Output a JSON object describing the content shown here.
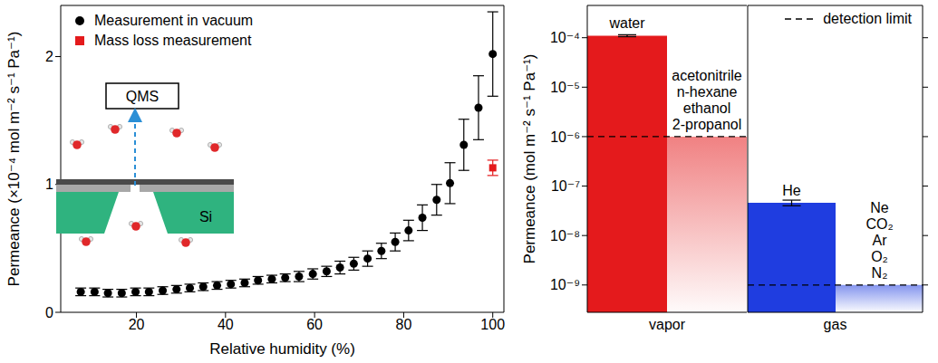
{
  "chart_data": [
    {
      "type": "scatter",
      "x_label": "Relative humidity (%)",
      "y_label": "Permeance (×10⁻⁴ mol m⁻² s⁻¹ Pa⁻¹)",
      "xlim": [
        3,
        102.5
      ],
      "ylim": [
        0,
        2.4
      ],
      "xticks": [
        20,
        40,
        60,
        80,
        100
      ],
      "yticks": [
        0,
        1,
        2
      ],
      "legend": "upper left",
      "annotations": [
        "QMS",
        "Si"
      ],
      "series": [
        {
          "name": "Measurement in vacuum",
          "color": "#000000",
          "marker": "circle",
          "x": [
            7.5,
            10.6,
            13.6,
            16.7,
            19.8,
            22.8,
            25.9,
            29.0,
            32.0,
            35.0,
            38.1,
            41.2,
            44.3,
            47.3,
            50.4,
            53.4,
            56.5,
            59.6,
            62.7,
            65.7,
            68.8,
            71.9,
            75.0,
            78.1,
            81.1,
            84.2,
            87.4,
            90.4,
            93.5,
            96.8,
            100
          ],
          "values": [
            0.16,
            0.16,
            0.15,
            0.15,
            0.16,
            0.16,
            0.17,
            0.18,
            0.19,
            0.2,
            0.21,
            0.22,
            0.23,
            0.25,
            0.26,
            0.27,
            0.28,
            0.3,
            0.32,
            0.35,
            0.38,
            0.42,
            0.48,
            0.55,
            0.64,
            0.74,
            0.88,
            1.01,
            1.31,
            1.6,
            2.02
          ],
          "errors": [
            0.03,
            0.03,
            0.03,
            0.03,
            0.03,
            0.03,
            0.03,
            0.03,
            0.03,
            0.03,
            0.03,
            0.03,
            0.03,
            0.03,
            0.03,
            0.03,
            0.04,
            0.04,
            0.04,
            0.05,
            0.05,
            0.06,
            0.06,
            0.07,
            0.08,
            0.1,
            0.12,
            0.16,
            0.2,
            0.25,
            0.33
          ]
        },
        {
          "name": "Mass loss measurement",
          "color": "#e41a1c",
          "marker": "square",
          "x": [
            100
          ],
          "values": [
            1.13
          ],
          "errors": [
            0.06
          ]
        }
      ]
    },
    {
      "type": "bar",
      "log": "y",
      "categories": [
        "vapor"
      ],
      "y_label": "Permeance (mol m⁻² s⁻¹ Pa⁻¹)",
      "ylim": [
        2.8e-10,
        0.00045
      ],
      "yticks": [
        {
          "value": 1e-09,
          "label": "10⁻⁹"
        },
        {
          "value": 1e-08,
          "label": "10⁻⁸"
        },
        {
          "value": 1e-07,
          "label": "10⁻⁷"
        },
        {
          "value": 1e-06,
          "label": "10⁻⁶"
        },
        {
          "value": 1e-05,
          "label": "10⁻⁵"
        },
        {
          "value": 0.0001,
          "label": "10⁻⁴"
        }
      ],
      "reference_lines": [
        {
          "value": 1e-06,
          "line_style": "dashed"
        }
      ],
      "series": [
        {
          "name": "water",
          "color": "#e41a1c",
          "values": [
            0.00011
          ],
          "errors": [
            5e-06
          ]
        },
        {
          "name": "acetonitrile\nn-hexane\nethanol\n2-propanol",
          "color": "#e41a1c",
          "type": "fade",
          "values": [
            1e-06
          ]
        }
      ]
    },
    {
      "type": "bar",
      "log": "y",
      "categories": [
        "gas"
      ],
      "tick_labels": "x",
      "ylim": [
        2.8e-10,
        0.00045
      ],
      "yticks": [
        1e-09,
        1e-08,
        1e-07,
        1e-06,
        1e-05,
        0.0001
      ],
      "legend": "upper right",
      "reference_lines": [
        {
          "value": 1e-09,
          "name": "detection limit",
          "line_style": "dashed"
        }
      ],
      "series": [
        {
          "name": "He",
          "color": "#1f3de0",
          "values": [
            4.6e-08
          ],
          "errors": [
            6e-09
          ]
        },
        {
          "name": "Ne\nCO₂\nAr\nO₂\nN₂",
          "color": "#1f3de0",
          "type": "fade",
          "values": [
            1e-09
          ]
        }
      ]
    }
  ]
}
